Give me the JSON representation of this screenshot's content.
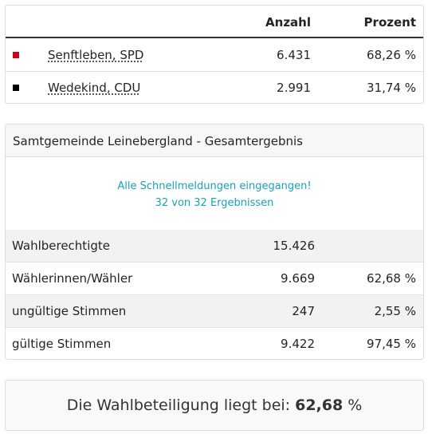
{
  "candidates": {
    "headers": {
      "anzahl": "Anzahl",
      "prozent": "Prozent"
    },
    "rows": [
      {
        "name": "Senftleben, SPD",
        "votes": "6.431",
        "percent": "68,26 %",
        "color": "#d0021b"
      },
      {
        "name": "Wedekind, CDU",
        "votes": "2.991",
        "percent": "31,74 %",
        "color": "#000000"
      }
    ]
  },
  "results": {
    "title": "Samtgemeinde Leinebergland - Gesamtergebnis",
    "notice_line1": "Alle Schnellmeldungen eingegangen!",
    "notice_line2": "32 von 32 Ergebnissen",
    "stats": [
      {
        "label": "Wahlberechtigte",
        "value": "15.426",
        "percent": ""
      },
      {
        "label": "Wählerinnen/Wähler",
        "value": "9.669",
        "percent": "62,68 %"
      },
      {
        "label": "ungültige Stimmen",
        "value": "247",
        "percent": "2,55 %"
      },
      {
        "label": "gültige Stimmen",
        "value": "9.422",
        "percent": "97,45 %"
      }
    ]
  },
  "turnout": {
    "prefix": "Die Wahlbeteiligung liegt bei: ",
    "value": "62,68",
    "suffix": " %"
  },
  "colors": {
    "notice": "#17a2b8",
    "spd": "#d0021b",
    "cdu": "#000000"
  }
}
